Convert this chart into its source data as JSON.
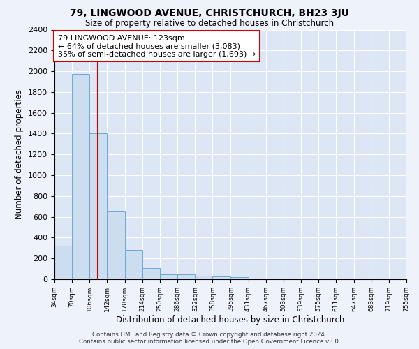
{
  "title1": "79, LINGWOOD AVENUE, CHRISTCHURCH, BH23 3JU",
  "title2": "Size of property relative to detached houses in Christchurch",
  "xlabel": "Distribution of detached houses by size in Christchurch",
  "ylabel": "Number of detached properties",
  "bin_edges": [
    34,
    70,
    106,
    142,
    178,
    214,
    250,
    286,
    322,
    358,
    395,
    431,
    467,
    503,
    539,
    575,
    611,
    647,
    683,
    719,
    755
  ],
  "bar_heights": [
    325,
    1975,
    1400,
    650,
    280,
    105,
    50,
    45,
    35,
    25,
    20,
    0,
    0,
    0,
    0,
    0,
    0,
    0,
    0,
    0
  ],
  "bar_color": "#ccddf0",
  "bar_edge_color": "#6aaad4",
  "property_size": 123,
  "red_line_color": "#cc0000",
  "annotation_line1": "79 LINGWOOD AVENUE: 123sqm",
  "annotation_line2": "← 64% of detached houses are smaller (3,083)",
  "annotation_line3": "35% of semi-detached houses are larger (1,693) →",
  "annotation_box_color": "#ffffff",
  "annotation_border_color": "#cc0000",
  "ylim": [
    0,
    2400
  ],
  "yticks": [
    0,
    200,
    400,
    600,
    800,
    1000,
    1200,
    1400,
    1600,
    1800,
    2000,
    2200,
    2400
  ],
  "footnote1": "Contains HM Land Registry data © Crown copyright and database right 2024.",
  "footnote2": "Contains public sector information licensed under the Open Government Licence v3.0.",
  "bg_color": "#eef2fa",
  "plot_bg_color": "#dce6f5",
  "grid_color": "#ffffff"
}
